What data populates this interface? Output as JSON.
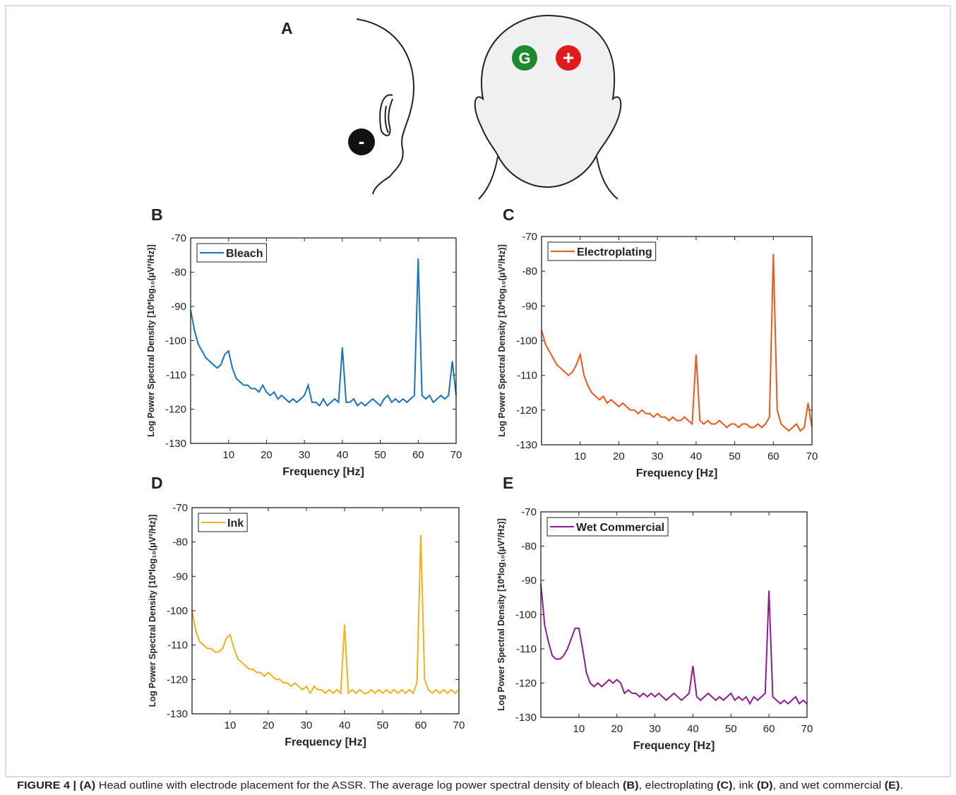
{
  "panel_a": {
    "label": "A",
    "electrodes": [
      "-",
      "G",
      "+"
    ]
  },
  "chart_data": [
    {
      "type": "line",
      "panel_label": "B",
      "xlabel": "Frequency [Hz]",
      "ylabel": "Log Power Spectral Density [10*log₁₀(μV²/Hz)]",
      "xlim": [
        0,
        70
      ],
      "xticks": [
        10,
        20,
        30,
        40,
        50,
        60,
        70
      ],
      "ylim": [
        -130,
        -70
      ],
      "yticks": [
        -130,
        -120,
        -110,
        -100,
        -90,
        -80,
        -70
      ],
      "legend": "upper left",
      "x": [
        0,
        1,
        2,
        3,
        4,
        5,
        6,
        7,
        8,
        9,
        10,
        11,
        12,
        13,
        14,
        15,
        16,
        17,
        18,
        19,
        20,
        21,
        22,
        23,
        24,
        25,
        26,
        27,
        28,
        29,
        30,
        31,
        32,
        33,
        34,
        35,
        36,
        37,
        38,
        39,
        40,
        41,
        42,
        43,
        44,
        45,
        46,
        47,
        48,
        49,
        50,
        51,
        52,
        53,
        54,
        55,
        56,
        57,
        58,
        59,
        60,
        61,
        62,
        63,
        64,
        65,
        66,
        67,
        68,
        69,
        70
      ],
      "series": [
        {
          "name": "Bleach",
          "color": "#1a72b8",
          "values": [
            -91,
            -97,
            -101,
            -103,
            -105,
            -106,
            -107,
            -108,
            -107,
            -104,
            -103,
            -108,
            -111,
            -112,
            -113,
            -113,
            -114,
            -114,
            -115,
            -113,
            -115,
            -116,
            -115,
            -117,
            -116,
            -117,
            -118,
            -117,
            -118,
            -117,
            -116,
            -113,
            -118,
            -118,
            -119,
            -117,
            -119,
            -118,
            -117,
            -118,
            -102,
            -118,
            -118,
            -117,
            -119,
            -118,
            -119,
            -118,
            -117,
            -118,
            -119,
            -117,
            -116,
            -118,
            -117,
            -118,
            -117,
            -118,
            -117,
            -116,
            -76,
            -116,
            -117,
            -116,
            -118,
            -117,
            -116,
            -117,
            -116,
            -106,
            -116
          ]
        }
      ]
    },
    {
      "type": "line",
      "panel_label": "C",
      "xlabel": "Frequency [Hz]",
      "ylabel": "Log Power Spectral Density [10*log₁₀(μV²/Hz)]",
      "xlim": [
        0,
        70
      ],
      "xticks": [
        10,
        20,
        30,
        40,
        50,
        60,
        70
      ],
      "ylim": [
        -130,
        -70
      ],
      "yticks": [
        -130,
        -120,
        -110,
        -100,
        -90,
        -80,
        -70
      ],
      "legend": "upper left",
      "x": [
        0,
        1,
        2,
        3,
        4,
        5,
        6,
        7,
        8,
        9,
        10,
        11,
        12,
        13,
        14,
        15,
        16,
        17,
        18,
        19,
        20,
        21,
        22,
        23,
        24,
        25,
        26,
        27,
        28,
        29,
        30,
        31,
        32,
        33,
        34,
        35,
        36,
        37,
        38,
        39,
        40,
        41,
        42,
        43,
        44,
        45,
        46,
        47,
        48,
        49,
        50,
        51,
        52,
        53,
        54,
        55,
        56,
        57,
        58,
        59,
        60,
        61,
        62,
        63,
        64,
        65,
        66,
        67,
        68,
        69,
        70
      ],
      "series": [
        {
          "name": "Electroplating",
          "color": "#e8571c",
          "values": [
            -97,
            -101,
            -103,
            -105,
            -107,
            -108,
            -109,
            -110,
            -109,
            -107,
            -104,
            -110,
            -113,
            -115,
            -116,
            -117,
            -116,
            -118,
            -117,
            -118,
            -119,
            -118,
            -119,
            -120,
            -120,
            -121,
            -120,
            -121,
            -121,
            -122,
            -121,
            -122,
            -122,
            -123,
            -122,
            -123,
            -123,
            -122,
            -123,
            -124,
            -104,
            -123,
            -124,
            -123,
            -124,
            -124,
            -123,
            -124,
            -125,
            -124,
            -124,
            -125,
            -124,
            -124,
            -125,
            -125,
            -124,
            -125,
            -124,
            -122,
            -75,
            -120,
            -124,
            -125,
            -126,
            -125,
            -124,
            -126,
            -125,
            -118,
            -125
          ]
        }
      ]
    },
    {
      "type": "line",
      "panel_label": "D",
      "xlabel": "Frequency [Hz]",
      "ylabel": "Log Power Spectral Density [10*log₁₀(μV²/Hz)]",
      "xlim": [
        0,
        70
      ],
      "xticks": [
        10,
        20,
        30,
        40,
        50,
        60,
        70
      ],
      "ylim": [
        -130,
        -70
      ],
      "yticks": [
        -130,
        -120,
        -110,
        -100,
        -90,
        -80,
        -70
      ],
      "legend": "upper left",
      "x": [
        0,
        1,
        2,
        3,
        4,
        5,
        6,
        7,
        8,
        9,
        10,
        11,
        12,
        13,
        14,
        15,
        16,
        17,
        18,
        19,
        20,
        21,
        22,
        23,
        24,
        25,
        26,
        27,
        28,
        29,
        30,
        31,
        32,
        33,
        34,
        35,
        36,
        37,
        38,
        39,
        40,
        41,
        42,
        43,
        44,
        45,
        46,
        47,
        48,
        49,
        50,
        51,
        52,
        53,
        54,
        55,
        56,
        57,
        58,
        59,
        60,
        61,
        62,
        63,
        64,
        65,
        66,
        67,
        68,
        69,
        70
      ],
      "series": [
        {
          "name": "Ink",
          "color": "#efb21e",
          "values": [
            -100,
            -106,
            -109,
            -110,
            -111,
            -111,
            -112,
            -112,
            -111,
            -108,
            -107,
            -111,
            -114,
            -115,
            -116,
            -117,
            -117,
            -118,
            -118,
            -119,
            -118,
            -119,
            -120,
            -120,
            -121,
            -121,
            -122,
            -121,
            -122,
            -123,
            -122,
            -124,
            -122,
            -123,
            -123,
            -124,
            -123,
            -124,
            -123,
            -124,
            -104,
            -124,
            -123,
            -124,
            -123,
            -124,
            -124,
            -123,
            -124,
            -123,
            -124,
            -123,
            -124,
            -123,
            -124,
            -123,
            -124,
            -123,
            -124,
            -121,
            -78,
            -120,
            -123,
            -124,
            -123,
            -124,
            -123,
            -124,
            -123,
            -124,
            -123
          ]
        }
      ]
    },
    {
      "type": "line",
      "panel_label": "E",
      "xlabel": "Frequency [Hz]",
      "ylabel": "Log Power Spectral Density [10*log₁₀(μV²/Hz)]",
      "xlim": [
        0,
        70
      ],
      "xticks": [
        10,
        20,
        30,
        40,
        50,
        60,
        70
      ],
      "ylim": [
        -130,
        -70
      ],
      "yticks": [
        -130,
        -120,
        -110,
        -100,
        -90,
        -80,
        -70
      ],
      "legend": "upper left",
      "x": [
        0,
        1,
        2,
        3,
        4,
        5,
        6,
        7,
        8,
        9,
        10,
        11,
        12,
        13,
        14,
        15,
        16,
        17,
        18,
        19,
        20,
        21,
        22,
        23,
        24,
        25,
        26,
        27,
        28,
        29,
        30,
        31,
        32,
        33,
        34,
        35,
        36,
        37,
        38,
        39,
        40,
        41,
        42,
        43,
        44,
        45,
        46,
        47,
        48,
        49,
        50,
        51,
        52,
        53,
        54,
        55,
        56,
        57,
        58,
        59,
        60,
        61,
        62,
        63,
        64,
        65,
        66,
        67,
        68,
        69,
        70
      ],
      "series": [
        {
          "name": "Wet Commercial",
          "color": "#8b1d8f",
          "values": [
            -91,
            -103,
            -108,
            -112,
            -113,
            -113,
            -112,
            -110,
            -107,
            -104,
            -104,
            -110,
            -117,
            -120,
            -121,
            -120,
            -121,
            -120,
            -119,
            -120,
            -119,
            -120,
            -123,
            -122,
            -123,
            -123,
            -124,
            -123,
            -124,
            -123,
            -124,
            -123,
            -124,
            -125,
            -124,
            -123,
            -124,
            -125,
            -124,
            -123,
            -115,
            -124,
            -125,
            -124,
            -123,
            -124,
            -125,
            -124,
            -125,
            -124,
            -123,
            -125,
            -124,
            -125,
            -124,
            -126,
            -124,
            -125,
            -124,
            -123,
            -93,
            -124,
            -125,
            -126,
            -125,
            -126,
            -125,
            -124,
            -126,
            -125,
            -126
          ]
        }
      ]
    }
  ],
  "caption": [
    {
      "text": "FIGURE 4 | (A)",
      "bold": true
    },
    {
      "text": " Head outline with electrode placement for the ASSR. The average log power spectral density of bleach ",
      "bold": false
    },
    {
      "text": "(B)",
      "bold": true
    },
    {
      "text": ", electroplating ",
      "bold": false
    },
    {
      "text": "(C)",
      "bold": true
    },
    {
      "text": ", ink ",
      "bold": false
    },
    {
      "text": "(D)",
      "bold": true
    },
    {
      "text": ", and wet commercial ",
      "bold": false
    },
    {
      "text": "(E)",
      "bold": true
    },
    {
      "text": ".",
      "bold": false
    }
  ]
}
